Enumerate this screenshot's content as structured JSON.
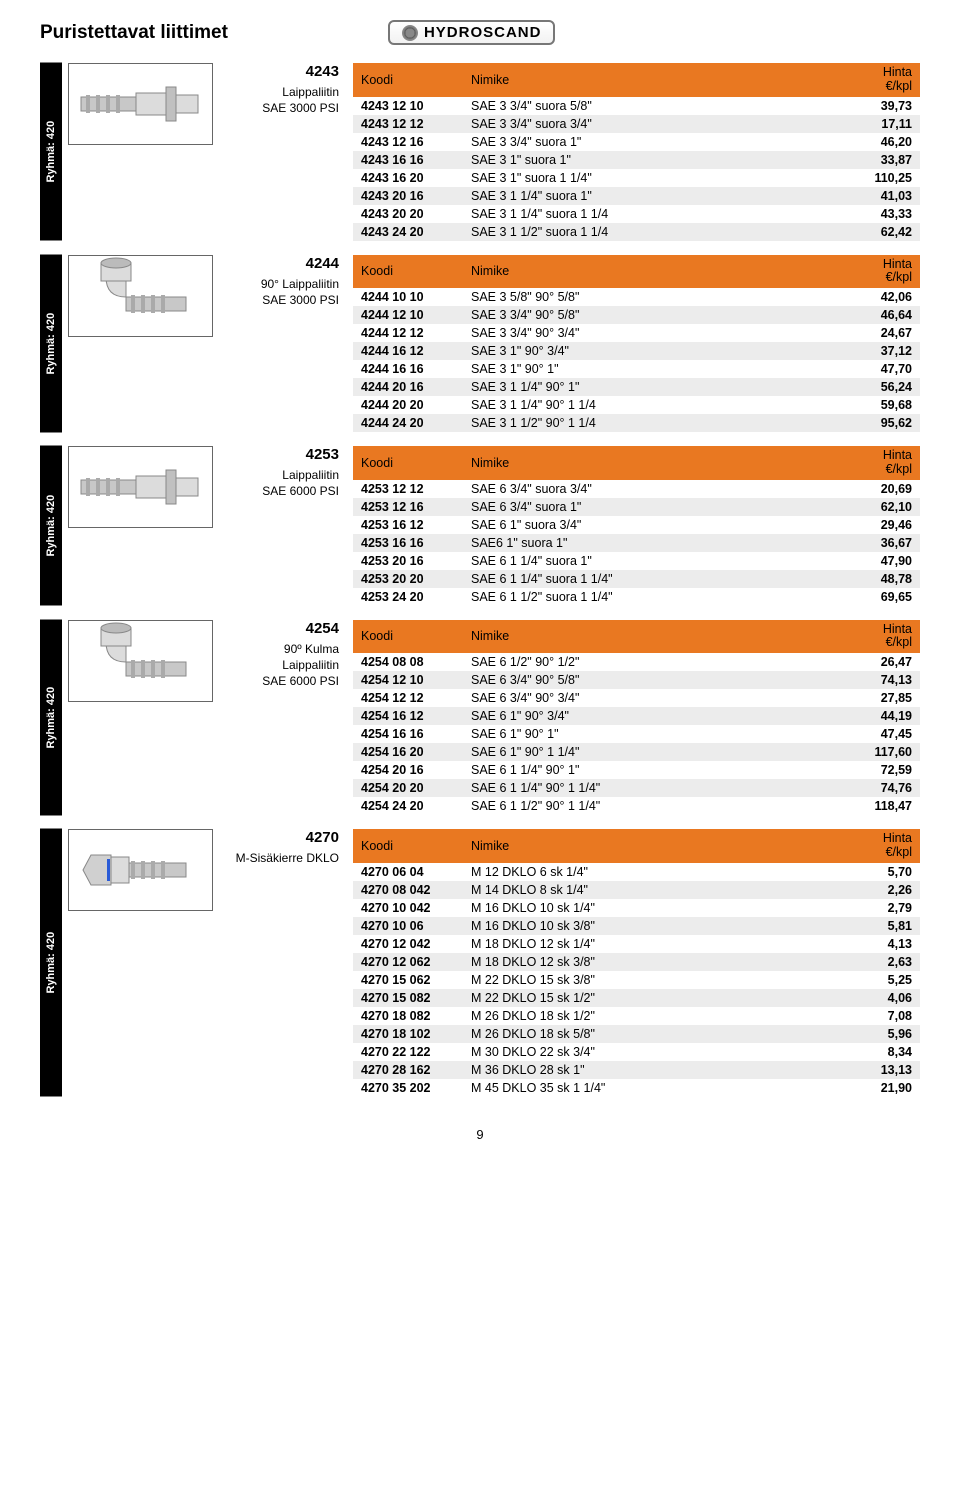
{
  "page_title": "Puristettavat liittimet",
  "brand": "HYDROSCAND",
  "group_label": "Ryhmä: 420",
  "page_number": "9",
  "colors": {
    "header_bg": "#e97821",
    "row_even": "#ececec",
    "row_odd": "#ffffff",
    "side_tab_bg": "#000000",
    "side_tab_fg": "#ffffff"
  },
  "col_headers": {
    "koodi": "Koodi",
    "nimike": "Nimike",
    "hinta_line1": "Hinta",
    "hinta_line2": "€/kpl"
  },
  "sections": [
    {
      "id": "4243",
      "sub": [
        "Laippaliitin",
        "SAE 3000 PSI"
      ],
      "rows": [
        {
          "k": "4243 12 10",
          "n": "SAE 3  3/4\" suora 5/8\"",
          "p": "39,73"
        },
        {
          "k": "4243 12 12",
          "n": "SAE 3 3/4\" suora 3/4\"",
          "p": "17,11"
        },
        {
          "k": "4243 12 16",
          "n": "SAE 3 3/4\" suora 1\"",
          "p": "46,20"
        },
        {
          "k": "4243 16 16",
          "n": "SAE 3 1\"  suora 1\"",
          "p": "33,87"
        },
        {
          "k": "4243 16 20",
          "n": "SAE 3 1\"  suora 1 1/4\"",
          "p": "110,25"
        },
        {
          "k": "4243 20 16",
          "n": "SAE 3 1 1/4\" suora 1\"",
          "p": "41,03"
        },
        {
          "k": "4243 20 20",
          "n": "SAE 3 1 1/4\" suora 1 1/4",
          "p": "43,33"
        },
        {
          "k": "4243 24 20",
          "n": "SAE 3 1 1/2\" suora 1 1/4",
          "p": "62,42"
        }
      ]
    },
    {
      "id": "4244",
      "sub": [
        "90° Laippaliitin",
        "SAE 3000 PSI"
      ],
      "rows": [
        {
          "k": "4244 10 10",
          "n": "SAE 3  5/8\" 90° 5/8\"",
          "p": "42,06"
        },
        {
          "k": "4244 12 10",
          "n": "SAE 3  3/4\" 90° 5/8\"",
          "p": "46,64"
        },
        {
          "k": "4244 12 12",
          "n": "SAE 3  3/4\" 90° 3/4\"",
          "p": "24,67"
        },
        {
          "k": "4244 16 12",
          "n": "SAE 3  1\"  90° 3/4\"",
          "p": "37,12"
        },
        {
          "k": "4244 16 16",
          "n": "SAE 3  1\"  90° 1\"",
          "p": "47,70"
        },
        {
          "k": "4244 20 16",
          "n": "SAE 3 1 1/4\" 90° 1\"",
          "p": "56,24"
        },
        {
          "k": "4244 20 20",
          "n": "SAE 3 1 1/4\" 90° 1 1/4",
          "p": "59,68"
        },
        {
          "k": "4244 24 20",
          "n": "SAE 3 1 1/2\" 90° 1 1/4",
          "p": "95,62"
        }
      ]
    },
    {
      "id": "4253",
      "sub": [
        "Laippaliitin",
        "SAE 6000 PSI"
      ],
      "rows": [
        {
          "k": "4253 12 12",
          "n": "SAE 6 3/4\" suora  3/4\"",
          "p": "20,69"
        },
        {
          "k": "4253 12 16",
          "n": "SAE 6 3/4\" suora  1\"",
          "p": "62,10"
        },
        {
          "k": "4253 16 12",
          "n": "SAE 6 1\" suora 3/4\"",
          "p": "29,46"
        },
        {
          "k": "4253 16 16",
          "n": "SAE6 1\" suora 1\"",
          "p": "36,67"
        },
        {
          "k": "4253 20 16",
          "n": "SAE 6 1 1/4\" suora 1\"",
          "p": "47,90"
        },
        {
          "k": "4253 20 20",
          "n": "SAE 6 1 1/4\" suora 1 1/4\"",
          "p": "48,78"
        },
        {
          "k": "4253 24 20",
          "n": "SAE 6 1 1/2\" suora 1 1/4\"",
          "p": "69,65"
        }
      ]
    },
    {
      "id": "4254",
      "sub": [
        "90º Kulma",
        "Laippaliitin",
        "SAE 6000 PSI"
      ],
      "rows": [
        {
          "k": "4254 08 08",
          "n": "SAE 6 1/2\" 90° 1/2\"",
          "p": "26,47"
        },
        {
          "k": "4254 12 10",
          "n": "SAE 6 3/4\" 90° 5/8\"",
          "p": "74,13"
        },
        {
          "k": "4254 12 12",
          "n": "SAE 6 3/4\" 90° 3/4\"",
          "p": "27,85"
        },
        {
          "k": "4254 16 12",
          "n": "SAE 6 1\" 90° 3/4\"",
          "p": "44,19"
        },
        {
          "k": "4254 16 16",
          "n": "SAE 6 1\" 90° 1\"",
          "p": "47,45"
        },
        {
          "k": "4254 16 20",
          "n": "SAE 6 1\" 90° 1 1/4\"",
          "p": "117,60"
        },
        {
          "k": "4254 20 16",
          "n": "SAE 6 1 1/4\" 90° 1\"",
          "p": "72,59"
        },
        {
          "k": "4254 20 20",
          "n": "SAE 6 1 1/4\" 90° 1 1/4\"",
          "p": "74,76"
        },
        {
          "k": "4254 24 20",
          "n": "SAE 6 1 1/2\" 90° 1 1/4\"",
          "p": "118,47"
        }
      ]
    },
    {
      "id": "4270",
      "sub": [
        "M-Sisäkierre DKLO"
      ],
      "rows": [
        {
          "k": "4270 06 04",
          "n": "M 12 DKLO 6 sk 1/4\"",
          "p": "5,70"
        },
        {
          "k": "4270 08 042",
          "n": "M 14 DKLO 8 sk 1/4\"",
          "p": "2,26"
        },
        {
          "k": "4270 10 042",
          "n": "M 16 DKLO 10 sk 1/4\"",
          "p": "2,79"
        },
        {
          "k": "4270 10 06",
          "n": "M 16 DKLO 10 sk 3/8\"",
          "p": "5,81"
        },
        {
          "k": "4270 12 042",
          "n": "M 18 DKLO 12 sk 1/4\"",
          "p": "4,13"
        },
        {
          "k": "4270 12 062",
          "n": "M 18 DKLO 12 sk 3/8\"",
          "p": "2,63"
        },
        {
          "k": "4270 15 062",
          "n": "M 22 DKLO 15 sk 3/8\"",
          "p": "5,25"
        },
        {
          "k": "4270 15 082",
          "n": "M 22 DKLO 15 sk 1/2\"",
          "p": "4,06"
        },
        {
          "k": "4270 18 082",
          "n": "M 26 DKLO 18 sk 1/2\"",
          "p": "7,08"
        },
        {
          "k": "4270 18 102",
          "n": "M 26 DKLO 18 sk 5/8\"",
          "p": "5,96"
        },
        {
          "k": "4270 22 122",
          "n": "M 30 DKLO 22 sk 3/4\"",
          "p": "8,34"
        },
        {
          "k": "4270 28 162",
          "n": "M 36 DKLO 28 sk 1\"",
          "p": "13,13"
        },
        {
          "k": "4270 35 202",
          "n": "M 45 DKLO 35 sk 1 1/4\"",
          "p": "21,90"
        }
      ]
    }
  ],
  "illustrations": {
    "straight": "straight",
    "elbow": "elbow",
    "nut": "nut"
  },
  "section_images": [
    "straight",
    "elbow",
    "straight",
    "elbow",
    "nut"
  ]
}
